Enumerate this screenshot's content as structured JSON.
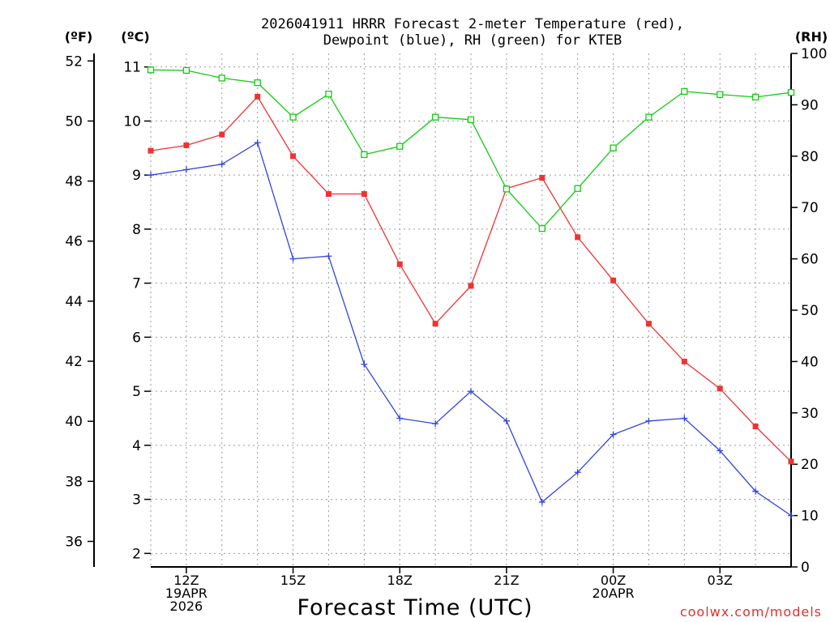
{
  "chart_data": {
    "type": "line",
    "title_line1": "2026041911 HRRR Forecast 2-meter Temperature (red),",
    "title_line2": "Dewpoint (blue), RH (green) for KTEB",
    "xlabel": "Forecast Time (UTC)",
    "credit": "coolwx.com/models",
    "left_outer_unit": "(ºF)",
    "left_inner_unit": "(ºC)",
    "right_unit": "(RH)",
    "x_hours": [
      11,
      12,
      13,
      14,
      15,
      16,
      17,
      18,
      19,
      20,
      21,
      22,
      23,
      24,
      25,
      26,
      27,
      28,
      29
    ],
    "x_tick_labels": [
      {
        "hour": 12,
        "lines": [
          "12Z",
          "19APR",
          "2026"
        ]
      },
      {
        "hour": 15,
        "lines": [
          "15Z"
        ]
      },
      {
        "hour": 18,
        "lines": [
          "18Z"
        ]
      },
      {
        "hour": 21,
        "lines": [
          "21Z"
        ]
      },
      {
        "hour": 24,
        "lines": [
          "00Z",
          "20APR"
        ]
      },
      {
        "hour": 27,
        "lines": [
          "03Z"
        ]
      }
    ],
    "xlim": [
      11,
      29
    ],
    "ylim_c": [
      1.75,
      11.25
    ],
    "ylim_rh": [
      0,
      100
    ],
    "c_ticks": [
      2,
      3,
      4,
      5,
      6,
      7,
      8,
      9,
      10,
      11
    ],
    "f_ticks": [
      36,
      38,
      40,
      42,
      44,
      46,
      48,
      50,
      52
    ],
    "rh_ticks": [
      0,
      10,
      20,
      30,
      40,
      50,
      60,
      70,
      80,
      90,
      100
    ],
    "series": [
      {
        "name": "2-meter Temperature",
        "color": "#ee3333",
        "marker": "filled-square",
        "unit": "C",
        "values": [
          9.45,
          9.55,
          9.75,
          10.45,
          9.35,
          8.65,
          8.65,
          7.35,
          6.25,
          6.95,
          8.75,
          8.95,
          7.85,
          7.05,
          6.25,
          5.55,
          5.05,
          4.35,
          3.7
        ]
      },
      {
        "name": "Dewpoint",
        "color": "#3344dd",
        "marker": "plus",
        "unit": "C",
        "values": [
          9.0,
          9.1,
          9.2,
          9.6,
          7.45,
          7.5,
          5.5,
          4.5,
          4.4,
          5.0,
          4.45,
          2.95,
          3.5,
          4.2,
          4.45,
          4.5,
          3.9,
          3.15,
          2.7
        ]
      },
      {
        "name": "RH",
        "color": "#11cc11",
        "marker": "open-square",
        "unit": "%",
        "values": [
          96.8,
          96.7,
          95.2,
          94.3,
          87.6,
          92.1,
          80.3,
          81.9,
          87.6,
          87.1,
          73.6,
          65.9,
          73.7,
          81.6,
          87.6,
          92.6,
          92.0,
          91.5,
          92.4
        ]
      }
    ]
  }
}
